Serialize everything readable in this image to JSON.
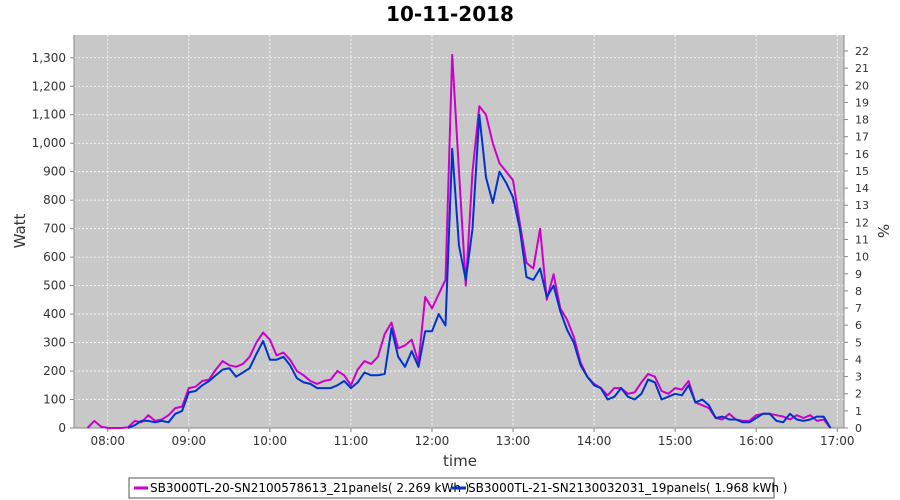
{
  "chart_data": {
    "type": "line",
    "title": "10-11-2018",
    "xlabel": "time",
    "ylabel": "Watt",
    "y2label": "%",
    "background": "#c8c8c8",
    "grid": true,
    "legend_position": "bottom",
    "x_ticks": [
      "08:00",
      "09:00",
      "10:00",
      "11:00",
      "12:00",
      "13:00",
      "14:00",
      "15:00",
      "16:00",
      "17:00"
    ],
    "y_ticks": [
      "0",
      "100",
      "200",
      "300",
      "400",
      "500",
      "600",
      "700",
      "800",
      "900",
      "1,000",
      "1,100",
      "1,200",
      "1,300"
    ],
    "y2_ticks": [
      "0",
      "1",
      "2",
      "3",
      "4",
      "5",
      "6",
      "7",
      "8",
      "9",
      "10",
      "11",
      "12",
      "13",
      "14",
      "15",
      "16",
      "17",
      "18",
      "19",
      "20",
      "21",
      "22"
    ],
    "ylim": [
      0,
      1380
    ],
    "xlim": [
      "07:35",
      "17:05"
    ],
    "series": [
      {
        "name": "SB3000TL-20-SN2100578613_21panels( 2.269 kWh )",
        "color": "#cc00cc",
        "points": [
          [
            "07:45",
            0
          ],
          [
            "07:50",
            25
          ],
          [
            "07:55",
            5
          ],
          [
            "08:00",
            0
          ],
          [
            "08:10",
            0
          ],
          [
            "08:15",
            2
          ],
          [
            "08:20",
            25
          ],
          [
            "08:25",
            20
          ],
          [
            "08:30",
            45
          ],
          [
            "08:35",
            25
          ],
          [
            "08:40",
            30
          ],
          [
            "08:45",
            45
          ],
          [
            "08:50",
            70
          ],
          [
            "08:55",
            75
          ],
          [
            "09:00",
            140
          ],
          [
            "09:05",
            145
          ],
          [
            "09:10",
            165
          ],
          [
            "09:15",
            170
          ],
          [
            "09:20",
            205
          ],
          [
            "09:25",
            235
          ],
          [
            "09:30",
            220
          ],
          [
            "09:35",
            215
          ],
          [
            "09:40",
            225
          ],
          [
            "09:45",
            250
          ],
          [
            "09:50",
            300
          ],
          [
            "09:55",
            335
          ],
          [
            "10:00",
            310
          ],
          [
            "10:05",
            255
          ],
          [
            "10:10",
            265
          ],
          [
            "10:15",
            240
          ],
          [
            "10:20",
            200
          ],
          [
            "10:25",
            185
          ],
          [
            "10:30",
            165
          ],
          [
            "10:35",
            155
          ],
          [
            "10:40",
            165
          ],
          [
            "10:45",
            170
          ],
          [
            "10:50",
            200
          ],
          [
            "10:55",
            185
          ],
          [
            "11:00",
            150
          ],
          [
            "11:05",
            205
          ],
          [
            "11:10",
            235
          ],
          [
            "11:15",
            225
          ],
          [
            "11:20",
            250
          ],
          [
            "11:25",
            330
          ],
          [
            "11:30",
            370
          ],
          [
            "11:35",
            280
          ],
          [
            "11:40",
            290
          ],
          [
            "11:45",
            310
          ],
          [
            "11:50",
            230
          ],
          [
            "11:55",
            460
          ],
          [
            "12:00",
            420
          ],
          [
            "12:05",
            470
          ],
          [
            "12:10",
            520
          ],
          [
            "12:15",
            1310
          ],
          [
            "12:20",
            900
          ],
          [
            "12:25",
            500
          ],
          [
            "12:30",
            900
          ],
          [
            "12:35",
            1130
          ],
          [
            "12:40",
            1100
          ],
          [
            "12:45",
            1000
          ],
          [
            "12:50",
            930
          ],
          [
            "12:55",
            900
          ],
          [
            "13:00",
            870
          ],
          [
            "13:05",
            720
          ],
          [
            "13:10",
            580
          ],
          [
            "13:15",
            560
          ],
          [
            "13:20",
            700
          ],
          [
            "13:25",
            450
          ],
          [
            "13:30",
            540
          ],
          [
            "13:35",
            420
          ],
          [
            "13:40",
            380
          ],
          [
            "13:45",
            320
          ],
          [
            "13:50",
            230
          ],
          [
            "13:55",
            180
          ],
          [
            "14:00",
            155
          ],
          [
            "14:05",
            140
          ],
          [
            "14:10",
            115
          ],
          [
            "14:15",
            140
          ],
          [
            "14:20",
            140
          ],
          [
            "14:25",
            120
          ],
          [
            "14:30",
            125
          ],
          [
            "14:35",
            160
          ],
          [
            "14:40",
            190
          ],
          [
            "14:45",
            180
          ],
          [
            "14:50",
            130
          ],
          [
            "14:55",
            120
          ],
          [
            "15:00",
            140
          ],
          [
            "15:05",
            135
          ],
          [
            "15:10",
            165
          ],
          [
            "15:15",
            90
          ],
          [
            "15:20",
            80
          ],
          [
            "15:25",
            70
          ],
          [
            "15:30",
            35
          ],
          [
            "15:35",
            30
          ],
          [
            "15:40",
            50
          ],
          [
            "15:45",
            30
          ],
          [
            "15:50",
            25
          ],
          [
            "15:55",
            25
          ],
          [
            "16:00",
            45
          ],
          [
            "16:05",
            50
          ],
          [
            "16:10",
            50
          ],
          [
            "16:15",
            45
          ],
          [
            "16:20",
            40
          ],
          [
            "16:25",
            30
          ],
          [
            "16:30",
            45
          ],
          [
            "16:35",
            35
          ],
          [
            "16:40",
            45
          ],
          [
            "16:45",
            25
          ],
          [
            "16:50",
            30
          ],
          [
            "16:55",
            0
          ]
        ]
      },
      {
        "name": "SB3000TL-21-SN2130032031_19panels( 1.968 kWh )",
        "color": "#0033cc",
        "points": [
          [
            "08:15",
            0
          ],
          [
            "08:20",
            10
          ],
          [
            "08:25",
            25
          ],
          [
            "08:30",
            25
          ],
          [
            "08:35",
            20
          ],
          [
            "08:40",
            25
          ],
          [
            "08:45",
            20
          ],
          [
            "08:50",
            50
          ],
          [
            "08:55",
            60
          ],
          [
            "09:00",
            125
          ],
          [
            "09:05",
            130
          ],
          [
            "09:10",
            150
          ],
          [
            "09:15",
            165
          ],
          [
            "09:20",
            185
          ],
          [
            "09:25",
            205
          ],
          [
            "09:30",
            210
          ],
          [
            "09:35",
            180
          ],
          [
            "09:40",
            195
          ],
          [
            "09:45",
            210
          ],
          [
            "09:50",
            260
          ],
          [
            "09:55",
            305
          ],
          [
            "10:00",
            240
          ],
          [
            "10:05",
            240
          ],
          [
            "10:10",
            250
          ],
          [
            "10:15",
            220
          ],
          [
            "10:20",
            175
          ],
          [
            "10:25",
            160
          ],
          [
            "10:30",
            155
          ],
          [
            "10:35",
            140
          ],
          [
            "10:40",
            140
          ],
          [
            "10:45",
            140
          ],
          [
            "10:50",
            150
          ],
          [
            "10:55",
            165
          ],
          [
            "11:00",
            140
          ],
          [
            "11:05",
            160
          ],
          [
            "11:10",
            195
          ],
          [
            "11:15",
            185
          ],
          [
            "11:20",
            185
          ],
          [
            "11:25",
            190
          ],
          [
            "11:30",
            350
          ],
          [
            "11:35",
            250
          ],
          [
            "11:40",
            215
          ],
          [
            "11:45",
            270
          ],
          [
            "11:50",
            215
          ],
          [
            "11:55",
            340
          ],
          [
            "12:00",
            340
          ],
          [
            "12:05",
            400
          ],
          [
            "12:10",
            360
          ],
          [
            "12:15",
            980
          ],
          [
            "12:20",
            640
          ],
          [
            "12:25",
            520
          ],
          [
            "12:30",
            700
          ],
          [
            "12:35",
            1100
          ],
          [
            "12:40",
            880
          ],
          [
            "12:45",
            790
          ],
          [
            "12:50",
            900
          ],
          [
            "12:55",
            860
          ],
          [
            "13:00",
            810
          ],
          [
            "13:05",
            700
          ],
          [
            "13:10",
            530
          ],
          [
            "13:15",
            520
          ],
          [
            "13:20",
            560
          ],
          [
            "13:25",
            460
          ],
          [
            "13:30",
            500
          ],
          [
            "13:35",
            410
          ],
          [
            "13:40",
            345
          ],
          [
            "13:45",
            300
          ],
          [
            "13:50",
            220
          ],
          [
            "13:55",
            180
          ],
          [
            "14:00",
            150
          ],
          [
            "14:05",
            140
          ],
          [
            "14:10",
            100
          ],
          [
            "14:15",
            110
          ],
          [
            "14:20",
            140
          ],
          [
            "14:25",
            110
          ],
          [
            "14:30",
            100
          ],
          [
            "14:35",
            120
          ],
          [
            "14:40",
            170
          ],
          [
            "14:45",
            160
          ],
          [
            "14:50",
            100
          ],
          [
            "14:55",
            110
          ],
          [
            "15:00",
            120
          ],
          [
            "15:05",
            115
          ],
          [
            "15:10",
            150
          ],
          [
            "15:15",
            90
          ],
          [
            "15:20",
            100
          ],
          [
            "15:25",
            80
          ],
          [
            "15:30",
            35
          ],
          [
            "15:35",
            40
          ],
          [
            "15:40",
            30
          ],
          [
            "15:45",
            30
          ],
          [
            "15:50",
            20
          ],
          [
            "15:55",
            20
          ],
          [
            "16:00",
            35
          ],
          [
            "16:05",
            50
          ],
          [
            "16:10",
            50
          ],
          [
            "16:15",
            25
          ],
          [
            "16:20",
            20
          ],
          [
            "16:25",
            50
          ],
          [
            "16:30",
            30
          ],
          [
            "16:35",
            25
          ],
          [
            "16:40",
            30
          ],
          [
            "16:45",
            40
          ],
          [
            "16:50",
            40
          ],
          [
            "16:55",
            0
          ]
        ]
      }
    ]
  }
}
